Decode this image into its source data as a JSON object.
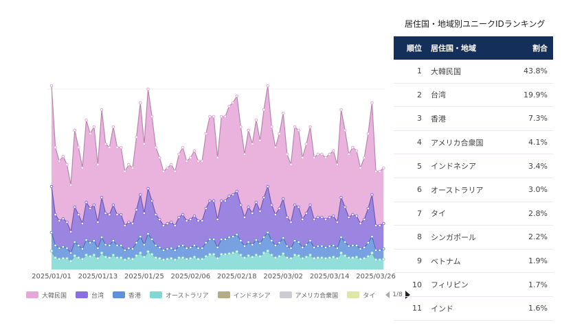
{
  "ranking": {
    "title": "居住国・地域別ユニークIDランキング",
    "headers": {
      "rank": "順位",
      "region": "居住国・地域",
      "share": "割合"
    },
    "rows": [
      {
        "rank": "1",
        "region": "大韓民国",
        "share": "43.8%"
      },
      {
        "rank": "2",
        "region": "台湾",
        "share": "19.9%"
      },
      {
        "rank": "3",
        "region": "香港",
        "share": "7.3%"
      },
      {
        "rank": "4",
        "region": "アメリカ合衆国",
        "share": "4.1%"
      },
      {
        "rank": "5",
        "region": "インドネシア",
        "share": "3.4%"
      },
      {
        "rank": "6",
        "region": "オーストラリア",
        "share": "3.0%"
      },
      {
        "rank": "7",
        "region": "タイ",
        "share": "2.8%"
      },
      {
        "rank": "8",
        "region": "シンガポール",
        "share": "2.2%"
      },
      {
        "rank": "9",
        "region": "ベトナム",
        "share": "1.9%"
      },
      {
        "rank": "10",
        "region": "フィリピン",
        "share": "1.7%"
      },
      {
        "rank": "11",
        "region": "インド",
        "share": "1.6%"
      }
    ]
  },
  "legend": {
    "items": [
      {
        "label": "大韓民国",
        "color": "#e6a6d8"
      },
      {
        "label": "台湾",
        "color": "#8a70dc"
      },
      {
        "label": "香港",
        "color": "#5f90dc"
      },
      {
        "label": "オーストラリア",
        "color": "#7fd8d4"
      },
      {
        "label": "インドネシア",
        "color": "#b3ad85"
      },
      {
        "label": "アメリカ合衆国",
        "color": "#cfcbd2"
      },
      {
        "label": "タイ",
        "color": "#dfe6a6"
      }
    ],
    "page": "1/8"
  },
  "chart_data": {
    "type": "area",
    "stacked": true,
    "grid": false,
    "legend_position": "bottom",
    "x_ticks": [
      "2025/01/01",
      "2025/01/13",
      "2025/01/25",
      "2025/02/06",
      "2025/02/18",
      "2025/03/02",
      "2025/03/14",
      "2025/03/26"
    ],
    "x": [
      "2025/01/01",
      "2025/01/02",
      "2025/01/03",
      "2025/01/04",
      "2025/01/05",
      "2025/01/06",
      "2025/01/07",
      "2025/01/08",
      "2025/01/09",
      "2025/01/10",
      "2025/01/11",
      "2025/01/12",
      "2025/01/13",
      "2025/01/14",
      "2025/01/15",
      "2025/01/16",
      "2025/01/17",
      "2025/01/18",
      "2025/01/19",
      "2025/01/20",
      "2025/01/21",
      "2025/01/22",
      "2025/01/23",
      "2025/01/24",
      "2025/01/25",
      "2025/01/26",
      "2025/01/27",
      "2025/01/28",
      "2025/01/29",
      "2025/01/30",
      "2025/01/31",
      "2025/02/01",
      "2025/02/02",
      "2025/02/03",
      "2025/02/04",
      "2025/02/05",
      "2025/02/06",
      "2025/02/07",
      "2025/02/08",
      "2025/02/09",
      "2025/02/10",
      "2025/02/11",
      "2025/02/12",
      "2025/02/13",
      "2025/02/14",
      "2025/02/15",
      "2025/02/16",
      "2025/02/17",
      "2025/02/18",
      "2025/02/19",
      "2025/02/20",
      "2025/02/21",
      "2025/02/22",
      "2025/02/23",
      "2025/02/24",
      "2025/02/25",
      "2025/02/26",
      "2025/02/27",
      "2025/02/28",
      "2025/03/01",
      "2025/03/02",
      "2025/03/03",
      "2025/03/04",
      "2025/03/05",
      "2025/03/06",
      "2025/03/07",
      "2025/03/08",
      "2025/03/09",
      "2025/03/10",
      "2025/03/11",
      "2025/03/12",
      "2025/03/13",
      "2025/03/14",
      "2025/03/15",
      "2025/03/16",
      "2025/03/17",
      "2025/03/18",
      "2025/03/19",
      "2025/03/20",
      "2025/03/21",
      "2025/03/22",
      "2025/03/23",
      "2025/03/24",
      "2025/03/25",
      "2025/03/26",
      "2025/03/27",
      "2025/03/28"
    ],
    "series": [
      {
        "name": "オーストラリア",
        "color": "#7fd8d4",
        "values": [
          27,
          17,
          15,
          16,
          16,
          12,
          20,
          17,
          15,
          21,
          19,
          21,
          16,
          24,
          18,
          17,
          21,
          17,
          17,
          14,
          16,
          15,
          20,
          24,
          18,
          26,
          22,
          17,
          16,
          14,
          15,
          16,
          14,
          17,
          17,
          15,
          16,
          18,
          15,
          15,
          19,
          22,
          22,
          16,
          22,
          22,
          23,
          24,
          26,
          21,
          17,
          20,
          18,
          21,
          19,
          24,
          27,
          21,
          17,
          19,
          23,
          17,
          16,
          21,
          20,
          16,
          18,
          21,
          16,
          17,
          17,
          16,
          17,
          18,
          16,
          24,
          20,
          17,
          17,
          18,
          15,
          16,
          19,
          24,
          14,
          14,
          15
        ]
      },
      {
        "name": "香港",
        "color": "#5f90dc",
        "values": [
          27,
          18,
          16,
          17,
          15,
          12,
          20,
          18,
          15,
          22,
          20,
          21,
          15,
          23,
          18,
          18,
          21,
          18,
          18,
          14,
          15,
          15,
          19,
          24,
          18,
          26,
          22,
          18,
          16,
          14,
          15,
          15,
          14,
          17,
          18,
          16,
          16,
          17,
          16,
          16,
          20,
          22,
          22,
          16,
          22,
          22,
          24,
          24,
          25,
          21,
          17,
          20,
          18,
          22,
          19,
          23,
          27,
          21,
          18,
          20,
          23,
          17,
          15,
          21,
          20,
          16,
          18,
          21,
          16,
          17,
          17,
          16,
          17,
          17,
          15,
          23,
          20,
          17,
          18,
          17,
          15,
          16,
          20,
          24,
          14,
          14,
          15
        ]
      },
      {
        "name": "台湾",
        "color": "#8a70dc",
        "values": [
          67,
          45,
          40,
          41,
          38,
          31,
          51,
          45,
          37,
          55,
          50,
          52,
          38,
          58,
          46,
          45,
          52,
          45,
          45,
          36,
          38,
          37,
          48,
          61,
          46,
          66,
          56,
          45,
          41,
          36,
          37,
          38,
          36,
          42,
          45,
          40,
          41,
          43,
          40,
          40,
          50,
          56,
          56,
          41,
          56,
          56,
          60,
          61,
          63,
          52,
          42,
          51,
          46,
          55,
          47,
          58,
          67,
          52,
          45,
          50,
          57,
          42,
          38,
          52,
          51,
          41,
          46,
          52,
          41,
          42,
          42,
          41,
          42,
          43,
          38,
          58,
          51,
          42,
          45,
          43,
          37,
          41,
          50,
          61,
          36,
          36,
          37
        ]
      },
      {
        "name": "大韓民国",
        "color": "#e6a6d8",
        "values": [
          147,
          98,
          87,
          91,
          84,
          68,
          112,
          98,
          81,
          120,
          109,
          114,
          84,
          128,
          101,
          98,
          114,
          98,
          98,
          79,
          84,
          81,
          106,
          134,
          101,
          145,
          123,
          98,
          90,
          79,
          81,
          84,
          79,
          92,
          98,
          87,
          90,
          95,
          87,
          87,
          109,
          123,
          123,
          90,
          123,
          123,
          131,
          134,
          139,
          114,
          92,
          112,
          101,
          120,
          103,
          128,
          147,
          114,
          98,
          109,
          125,
          92,
          84,
          114,
          112,
          90,
          101,
          114,
          90,
          92,
          92,
          90,
          92,
          95,
          84,
          128,
          112,
          92,
          98,
          95,
          81,
          90,
          109,
          134,
          79,
          79,
          81
        ]
      }
    ],
    "ylim": [
      0,
      280
    ]
  }
}
